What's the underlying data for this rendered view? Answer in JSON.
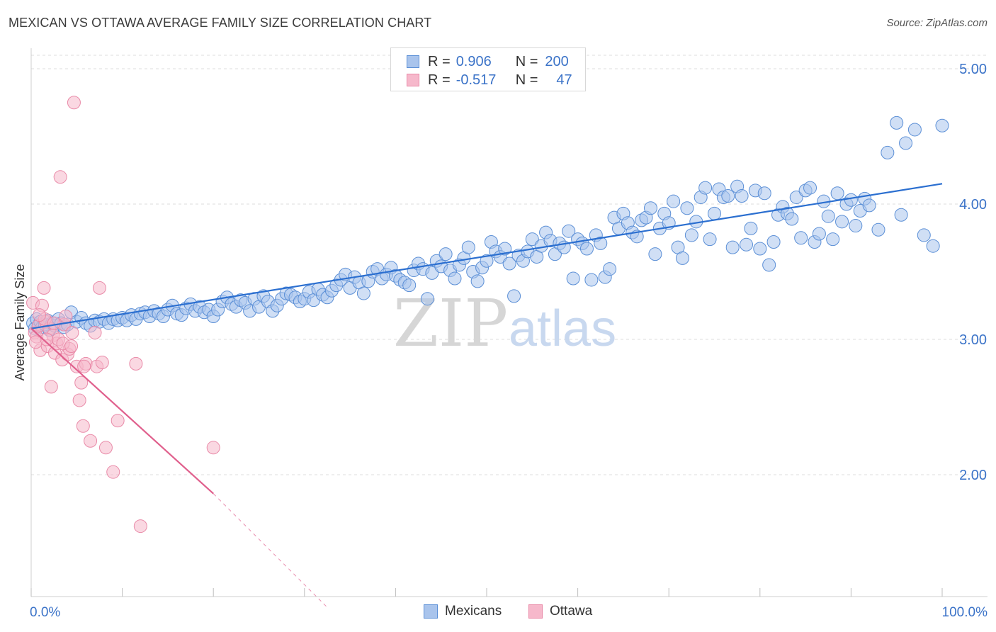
{
  "title": "MEXICAN VS OTTAWA AVERAGE FAMILY SIZE CORRELATION CHART",
  "source": "Source: ZipAtlas.com",
  "watermark": {
    "zip": "ZIP",
    "atlas": "atlas"
  },
  "legend": {
    "rows": [
      {
        "r_label": "R =",
        "r_value": "0.906",
        "n_label": "N =",
        "n_value": "200"
      },
      {
        "r_label": "R =",
        "r_value": "-0.517",
        "n_label": "N =",
        "n_value": "47"
      }
    ]
  },
  "bottom_legend": {
    "series1": "Mexicans",
    "series2": "Ottawa"
  },
  "colors": {
    "mexicans_fill": "#a9c4ec",
    "mexicans_stroke": "#5b8fd6",
    "mexicans_line": "#2b6fd0",
    "ottawa_fill": "#f6b8cb",
    "ottawa_stroke": "#e98aa8",
    "ottawa_line": "#e0608d",
    "tick_text": "#3b73c8",
    "grid": "#dddddd"
  },
  "chart_data": {
    "type": "scatter",
    "title": "MEXICAN VS OTTAWA AVERAGE FAMILY SIZE CORRELATION CHART",
    "xlabel": "",
    "ylabel": "Average Family Size",
    "xlim": [
      0,
      100
    ],
    "ylim": [
      1.0,
      5.05
    ],
    "x_tick_labels": [
      "0.0%",
      "100.0%"
    ],
    "y_ticks": [
      2.0,
      3.0,
      4.0,
      5.0
    ],
    "y_tick_labels": [
      "2.00",
      "3.00",
      "4.00",
      "5.00"
    ],
    "grid": true,
    "legend_position": "top-center",
    "series": [
      {
        "name": "Mexicans",
        "r": 0.906,
        "n": 200,
        "trend": {
          "x": [
            0,
            100
          ],
          "y": [
            3.08,
            4.15
          ]
        },
        "points": [
          [
            0.2,
            3.12
          ],
          [
            0.4,
            3.08
          ],
          [
            0.6,
            3.15
          ],
          [
            0.8,
            3.1
          ],
          [
            1,
            3.13
          ],
          [
            1.2,
            3.09
          ],
          [
            1.5,
            3.11
          ],
          [
            1.8,
            3.14
          ],
          [
            2,
            3.07
          ],
          [
            2.3,
            3.12
          ],
          [
            2.6,
            3.1
          ],
          [
            3,
            3.15
          ],
          [
            3.3,
            3.12
          ],
          [
            3.6,
            3.09
          ],
          [
            4,
            3.11
          ],
          [
            4.4,
            3.2
          ],
          [
            5,
            3.13
          ],
          [
            5.5,
            3.16
          ],
          [
            6,
            3.12
          ],
          [
            6.5,
            3.1
          ],
          [
            7,
            3.14
          ],
          [
            7.5,
            3.13
          ],
          [
            8,
            3.15
          ],
          [
            8.5,
            3.12
          ],
          [
            9,
            3.15
          ],
          [
            9.5,
            3.14
          ],
          [
            10,
            3.16
          ],
          [
            10.5,
            3.14
          ],
          [
            11,
            3.18
          ],
          [
            11.5,
            3.15
          ],
          [
            12,
            3.19
          ],
          [
            12.5,
            3.2
          ],
          [
            13,
            3.17
          ],
          [
            13.5,
            3.21
          ],
          [
            14,
            3.19
          ],
          [
            14.5,
            3.17
          ],
          [
            15,
            3.22
          ],
          [
            15.5,
            3.25
          ],
          [
            16,
            3.19
          ],
          [
            16.5,
            3.18
          ],
          [
            17,
            3.23
          ],
          [
            17.5,
            3.26
          ],
          [
            18,
            3.21
          ],
          [
            18.5,
            3.24
          ],
          [
            19,
            3.2
          ],
          [
            19.5,
            3.22
          ],
          [
            20,
            3.17
          ],
          [
            20.5,
            3.22
          ],
          [
            21,
            3.28
          ],
          [
            21.5,
            3.31
          ],
          [
            22,
            3.26
          ],
          [
            22.5,
            3.24
          ],
          [
            23,
            3.29
          ],
          [
            23.5,
            3.27
          ],
          [
            24,
            3.21
          ],
          [
            24.5,
            3.3
          ],
          [
            25,
            3.24
          ],
          [
            25.5,
            3.32
          ],
          [
            26,
            3.28
          ],
          [
            26.5,
            3.21
          ],
          [
            27,
            3.25
          ],
          [
            27.5,
            3.3
          ],
          [
            28,
            3.34
          ],
          [
            28.5,
            3.33
          ],
          [
            29,
            3.31
          ],
          [
            29.5,
            3.28
          ],
          [
            30,
            3.3
          ],
          [
            30.5,
            3.35
          ],
          [
            31,
            3.29
          ],
          [
            31.5,
            3.37
          ],
          [
            32,
            3.33
          ],
          [
            32.5,
            3.31
          ],
          [
            33,
            3.36
          ],
          [
            33.5,
            3.4
          ],
          [
            34,
            3.44
          ],
          [
            34.5,
            3.48
          ],
          [
            35,
            3.38
          ],
          [
            35.5,
            3.46
          ],
          [
            36,
            3.42
          ],
          [
            36.5,
            3.34
          ],
          [
            37,
            3.43
          ],
          [
            37.5,
            3.5
          ],
          [
            38,
            3.52
          ],
          [
            38.5,
            3.45
          ],
          [
            39,
            3.48
          ],
          [
            39.5,
            3.53
          ],
          [
            40,
            3.47
          ],
          [
            40.5,
            3.44
          ],
          [
            41,
            3.42
          ],
          [
            41.5,
            3.4
          ],
          [
            42,
            3.51
          ],
          [
            42.5,
            3.56
          ],
          [
            43,
            3.52
          ],
          [
            43.5,
            3.3
          ],
          [
            44,
            3.49
          ],
          [
            44.5,
            3.58
          ],
          [
            45,
            3.54
          ],
          [
            45.5,
            3.63
          ],
          [
            46,
            3.51
          ],
          [
            46.5,
            3.45
          ],
          [
            47,
            3.55
          ],
          [
            47.5,
            3.6
          ],
          [
            48,
            3.68
          ],
          [
            48.5,
            3.5
          ],
          [
            49,
            3.43
          ],
          [
            49.5,
            3.53
          ],
          [
            50,
            3.58
          ],
          [
            50.5,
            3.72
          ],
          [
            51,
            3.65
          ],
          [
            51.5,
            3.61
          ],
          [
            52,
            3.67
          ],
          [
            52.5,
            3.56
          ],
          [
            53,
            3.32
          ],
          [
            53.5,
            3.62
          ],
          [
            54,
            3.58
          ],
          [
            54.5,
            3.65
          ],
          [
            55,
            3.74
          ],
          [
            55.5,
            3.61
          ],
          [
            56,
            3.69
          ],
          [
            56.5,
            3.79
          ],
          [
            57,
            3.73
          ],
          [
            57.5,
            3.63
          ],
          [
            58,
            3.71
          ],
          [
            58.5,
            3.68
          ],
          [
            59,
            3.8
          ],
          [
            59.5,
            3.45
          ],
          [
            60,
            3.74
          ],
          [
            60.5,
            3.71
          ],
          [
            61,
            3.67
          ],
          [
            61.5,
            3.44
          ],
          [
            62,
            3.77
          ],
          [
            62.5,
            3.71
          ],
          [
            63,
            3.46
          ],
          [
            63.5,
            3.52
          ],
          [
            64,
            3.9
          ],
          [
            64.5,
            3.82
          ],
          [
            65,
            3.93
          ],
          [
            65.5,
            3.86
          ],
          [
            66,
            3.79
          ],
          [
            66.5,
            3.76
          ],
          [
            67,
            3.88
          ],
          [
            67.5,
            3.9
          ],
          [
            68,
            3.97
          ],
          [
            68.5,
            3.63
          ],
          [
            69,
            3.82
          ],
          [
            69.5,
            3.93
          ],
          [
            70,
            3.86
          ],
          [
            70.5,
            4.02
          ],
          [
            71,
            3.68
          ],
          [
            71.5,
            3.6
          ],
          [
            72,
            3.97
          ],
          [
            72.5,
            3.77
          ],
          [
            73,
            3.87
          ],
          [
            73.5,
            4.05
          ],
          [
            74,
            4.12
          ],
          [
            74.5,
            3.74
          ],
          [
            75,
            3.93
          ],
          [
            75.5,
            4.11
          ],
          [
            76,
            4.05
          ],
          [
            76.5,
            4.06
          ],
          [
            77,
            3.68
          ],
          [
            77.5,
            4.13
          ],
          [
            78,
            4.06
          ],
          [
            78.5,
            3.7
          ],
          [
            79,
            3.82
          ],
          [
            79.5,
            4.1
          ],
          [
            80,
            3.67
          ],
          [
            80.5,
            4.08
          ],
          [
            81,
            3.55
          ],
          [
            81.5,
            3.72
          ],
          [
            82,
            3.92
          ],
          [
            82.5,
            3.98
          ],
          [
            83,
            3.93
          ],
          [
            83.5,
            3.89
          ],
          [
            84,
            4.05
          ],
          [
            84.5,
            3.75
          ],
          [
            85,
            4.1
          ],
          [
            85.5,
            4.12
          ],
          [
            86,
            3.72
          ],
          [
            86.5,
            3.78
          ],
          [
            87,
            4.02
          ],
          [
            87.5,
            3.91
          ],
          [
            88,
            3.74
          ],
          [
            88.5,
            4.08
          ],
          [
            89,
            3.87
          ],
          [
            89.5,
            4.0
          ],
          [
            90,
            4.03
          ],
          [
            90.5,
            3.84
          ],
          [
            91,
            3.95
          ],
          [
            91.5,
            4.04
          ],
          [
            92,
            3.99
          ],
          [
            93,
            3.81
          ],
          [
            94,
            4.38
          ],
          [
            95,
            4.6
          ],
          [
            96,
            4.45
          ],
          [
            97,
            4.55
          ],
          [
            98,
            3.77
          ],
          [
            99,
            3.69
          ],
          [
            100,
            4.58
          ],
          [
            95.5,
            3.92
          ]
        ]
      },
      {
        "name": "Ottawa",
        "r": -0.517,
        "n": 47,
        "trend": {
          "x": [
            0,
            20
          ],
          "y": [
            3.08,
            1.86
          ]
        },
        "trend_dashed": {
          "x": [
            20,
            32.5
          ],
          "y": [
            1.86,
            1.02
          ]
        },
        "points": [
          [
            0.2,
            3.27
          ],
          [
            0.4,
            3.05
          ],
          [
            0.6,
            3.02
          ],
          [
            0.8,
            3.1
          ],
          [
            1,
            2.92
          ],
          [
            1.2,
            3.25
          ],
          [
            1.4,
            3.38
          ],
          [
            1.6,
            3.13
          ],
          [
            1.8,
            2.95
          ],
          [
            2,
            3.08
          ],
          [
            2.2,
            2.65
          ],
          [
            2.4,
            3.03
          ],
          [
            2.6,
            2.9
          ],
          [
            2.8,
            2.97
          ],
          [
            3,
            3.0
          ],
          [
            3.2,
            4.2
          ],
          [
            3.4,
            2.85
          ],
          [
            3.6,
            3.11
          ],
          [
            3.8,
            3.17
          ],
          [
            4,
            2.89
          ],
          [
            4.2,
            2.93
          ],
          [
            4.5,
            3.05
          ],
          [
            4.7,
            4.75
          ],
          [
            5,
            2.8
          ],
          [
            5.3,
            2.55
          ],
          [
            5.5,
            2.68
          ],
          [
            5.7,
            2.36
          ],
          [
            6,
            2.82
          ],
          [
            6.5,
            2.25
          ],
          [
            7,
            3.05
          ],
          [
            7.2,
            2.8
          ],
          [
            7.5,
            3.38
          ],
          [
            7.8,
            2.83
          ],
          [
            8.2,
            2.2
          ],
          [
            9,
            2.02
          ],
          [
            9.5,
            2.4
          ],
          [
            11.5,
            2.82
          ],
          [
            12,
            1.62
          ],
          [
            20,
            2.2
          ],
          [
            0.5,
            2.98
          ],
          [
            1.5,
            3.15
          ],
          [
            2.5,
            3.12
          ],
          [
            3.5,
            2.97
          ],
          [
            4.4,
            2.95
          ],
          [
            5.8,
            2.8
          ],
          [
            0.9,
            3.18
          ],
          [
            1.7,
            3.0
          ]
        ]
      }
    ]
  }
}
